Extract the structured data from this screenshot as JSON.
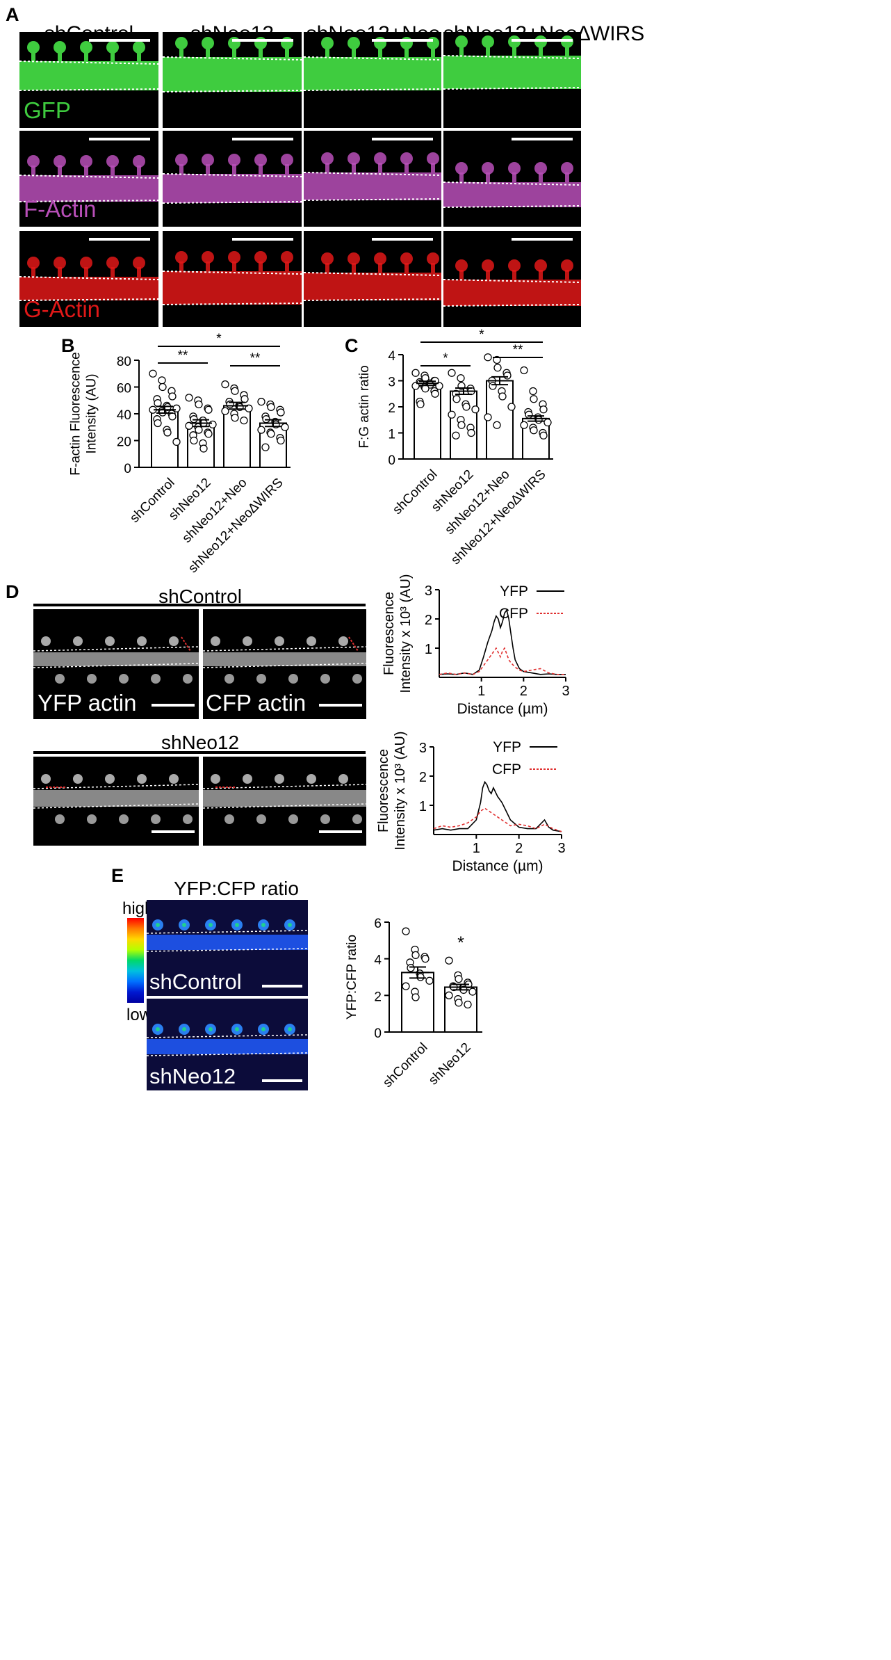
{
  "panel_labels": {
    "A": "A",
    "B": "B",
    "C": "C",
    "D": "D",
    "E": "E"
  },
  "panelA": {
    "columns": [
      "shControl",
      "shNeo12",
      "shNeo12+Neo",
      "shNeo12+Neo∆WIRS"
    ],
    "rows": [
      {
        "label": "GFP",
        "color": "#3fcc3f"
      },
      {
        "label": "F-Actin",
        "color": "#b84fb8"
      },
      {
        "label": "G-Actin",
        "color": "#e01818"
      }
    ]
  },
  "panelD": {
    "group1_title": "shControl",
    "group2_title": "shNeo12",
    "left_label": "YFP actin",
    "right_label": "CFP actin"
  },
  "panelE": {
    "title": "YFP:CFP ratio",
    "scale_high": "high",
    "scale_low": "low",
    "image1_label": "shControl",
    "image2_label": "shNeo12"
  },
  "chart_data": [
    {
      "id": "B",
      "type": "bar",
      "categories": [
        "shControl",
        "shNeo12",
        "shNeo12+Neo",
        "shNeo12+Neo∆WIRS"
      ],
      "values": [
        43,
        33,
        46,
        33
      ],
      "sem": [
        2.5,
        2.5,
        2.5,
        2.5
      ],
      "points": [
        [
          70,
          65,
          60,
          57,
          53,
          51,
          48,
          46,
          45,
          44,
          43,
          42,
          41,
          40,
          38,
          36,
          33,
          28,
          26,
          19
        ],
        [
          52,
          50,
          47,
          44,
          43,
          38,
          36,
          35,
          33,
          32,
          31,
          30,
          28,
          26,
          25,
          24,
          20,
          18,
          14
        ],
        [
          62,
          59,
          57,
          54,
          51,
          49,
          47,
          46,
          45,
          44,
          42,
          40,
          37,
          35
        ],
        [
          49,
          47,
          45,
          43,
          41,
          38,
          36,
          34,
          32,
          30,
          28,
          26,
          25,
          22,
          20,
          15
        ]
      ],
      "ylabel": "F-actin Fluorescence\nIntensity (AU)",
      "ylim": [
        0,
        80
      ],
      "yticks": [
        0,
        20,
        40,
        60,
        80
      ],
      "significance": [
        {
          "from": 0,
          "to": 1,
          "label": "**"
        },
        {
          "from": 2,
          "to": 3,
          "label": "**"
        },
        {
          "from": 0,
          "to": 3,
          "label": "*"
        }
      ]
    },
    {
      "id": "C",
      "type": "bar",
      "categories": [
        "shControl",
        "shNeo12",
        "shNeo12+Neo",
        "shNeo12+Neo∆WIRS"
      ],
      "values": [
        2.9,
        2.6,
        3.0,
        1.55
      ],
      "sem": [
        0.08,
        0.12,
        0.15,
        0.1
      ],
      "points": [
        [
          3.3,
          3.2,
          3.1,
          3.0,
          3.0,
          2.95,
          2.9,
          2.9,
          2.85,
          2.8,
          2.8,
          2.75,
          2.7,
          2.6,
          2.5,
          2.2,
          2.1
        ],
        [
          3.3,
          3.1,
          2.8,
          2.7,
          2.6,
          2.5,
          2.3,
          2.1,
          2.0,
          1.9,
          1.7,
          1.5,
          1.3,
          1.2,
          1.0,
          0.9
        ],
        [
          3.9,
          3.8,
          3.5,
          3.3,
          3.2,
          3.0,
          2.8,
          2.6,
          2.4,
          2.0,
          1.6,
          1.3
        ],
        [
          3.4,
          2.6,
          2.3,
          2.1,
          1.9,
          1.8,
          1.7,
          1.6,
          1.5,
          1.4,
          1.3,
          1.2,
          1.1,
          1.0,
          0.9
        ]
      ],
      "ylabel": "F:G actin ratio",
      "ylim": [
        0,
        4
      ],
      "yticks": [
        0,
        1,
        2,
        3,
        4
      ],
      "significance": [
        {
          "from": 0,
          "to": 1,
          "label": "*"
        },
        {
          "from": 2,
          "to": 3,
          "label": "**"
        },
        {
          "from": 0,
          "to": 3,
          "label": "*"
        }
      ]
    },
    {
      "id": "D1",
      "type": "line",
      "xlabel": "Distance (µm)",
      "ylabel": "Fluorescence\nIntensity x 10³ (AU)",
      "xlim": [
        0,
        3
      ],
      "ylim": [
        0,
        3
      ],
      "xticks": [
        1,
        2,
        3
      ],
      "yticks": [
        1,
        2,
        3
      ],
      "series": [
        {
          "name": "YFP",
          "color": "#000000",
          "dash": "none",
          "x": [
            0,
            0.2,
            0.4,
            0.6,
            0.8,
            0.95,
            1.05,
            1.15,
            1.25,
            1.3,
            1.35,
            1.4,
            1.45,
            1.5,
            1.55,
            1.6,
            1.65,
            1.7,
            1.75,
            1.8,
            1.9,
            2.0,
            2.2,
            2.4,
            2.6,
            2.8,
            3.0
          ],
          "y": [
            0.1,
            0.12,
            0.1,
            0.15,
            0.1,
            0.25,
            0.7,
            1.2,
            1.6,
            1.9,
            2.1,
            2.0,
            1.7,
            1.9,
            2.2,
            2.3,
            2.0,
            1.5,
            1.0,
            0.6,
            0.3,
            0.2,
            0.15,
            0.1,
            0.12,
            0.1,
            0.1
          ]
        },
        {
          "name": "CFP",
          "color": "#e03030",
          "dash": "4,3",
          "x": [
            0,
            0.2,
            0.4,
            0.6,
            0.8,
            0.95,
            1.05,
            1.15,
            1.25,
            1.35,
            1.45,
            1.5,
            1.55,
            1.6,
            1.65,
            1.7,
            1.8,
            1.9,
            2.0,
            2.2,
            2.4,
            2.6,
            2.8,
            3.0
          ],
          "y": [
            0.1,
            0.15,
            0.1,
            0.15,
            0.1,
            0.2,
            0.4,
            0.6,
            0.8,
            1.0,
            0.7,
            0.9,
            1.0,
            0.8,
            0.6,
            0.5,
            0.35,
            0.25,
            0.2,
            0.25,
            0.3,
            0.15,
            0.1,
            0.1
          ]
        }
      ]
    },
    {
      "id": "D2",
      "type": "line",
      "xlabel": "Distance (µm)",
      "ylabel": "Fluorescence\nIntensity x 10³ (AU)",
      "xlim": [
        0,
        3
      ],
      "ylim": [
        0,
        3
      ],
      "xticks": [
        1,
        2,
        3
      ],
      "yticks": [
        1,
        2,
        3
      ],
      "series": [
        {
          "name": "YFP",
          "color": "#000000",
          "dash": "none",
          "x": [
            0,
            0.2,
            0.4,
            0.6,
            0.8,
            1.0,
            1.1,
            1.15,
            1.2,
            1.25,
            1.3,
            1.35,
            1.4,
            1.5,
            1.6,
            1.7,
            1.8,
            2.0,
            2.2,
            2.4,
            2.6,
            2.7,
            2.8,
            3.0
          ],
          "y": [
            0.15,
            0.2,
            0.15,
            0.2,
            0.2,
            0.5,
            1.1,
            1.6,
            1.8,
            1.7,
            1.5,
            1.4,
            1.6,
            1.3,
            1.1,
            0.8,
            0.5,
            0.25,
            0.2,
            0.2,
            0.5,
            0.25,
            0.15,
            0.1
          ]
        },
        {
          "name": "CFP",
          "color": "#e03030",
          "dash": "4,3",
          "x": [
            0,
            0.2,
            0.4,
            0.6,
            0.8,
            1.0,
            1.1,
            1.2,
            1.3,
            1.4,
            1.5,
            1.6,
            1.7,
            1.8,
            2.0,
            2.2,
            2.4,
            2.6,
            2.8,
            3.0
          ],
          "y": [
            0.2,
            0.3,
            0.25,
            0.3,
            0.4,
            0.6,
            0.8,
            0.9,
            0.8,
            0.7,
            0.6,
            0.5,
            0.4,
            0.3,
            0.35,
            0.3,
            0.2,
            0.35,
            0.2,
            0.1
          ]
        }
      ]
    },
    {
      "id": "E",
      "type": "bar",
      "categories": [
        "shControl",
        "shNeo12"
      ],
      "values": [
        3.25,
        2.45
      ],
      "sem": [
        0.3,
        0.15
      ],
      "points": [
        [
          5.5,
          4.5,
          4.2,
          4.1,
          4.0,
          3.8,
          3.5,
          3.2,
          3.0,
          2.8,
          2.5,
          2.2,
          1.9
        ],
        [
          3.9,
          3.1,
          2.9,
          2.7,
          2.6,
          2.5,
          2.45,
          2.4,
          2.3,
          2.2,
          2.0,
          1.8,
          1.6,
          1.5
        ]
      ],
      "ylabel": "YFP:CFP ratio",
      "ylim": [
        0,
        6
      ],
      "yticks": [
        0,
        2,
        4,
        6
      ],
      "significance": [
        {
          "at": 1,
          "label": "*"
        }
      ]
    }
  ]
}
